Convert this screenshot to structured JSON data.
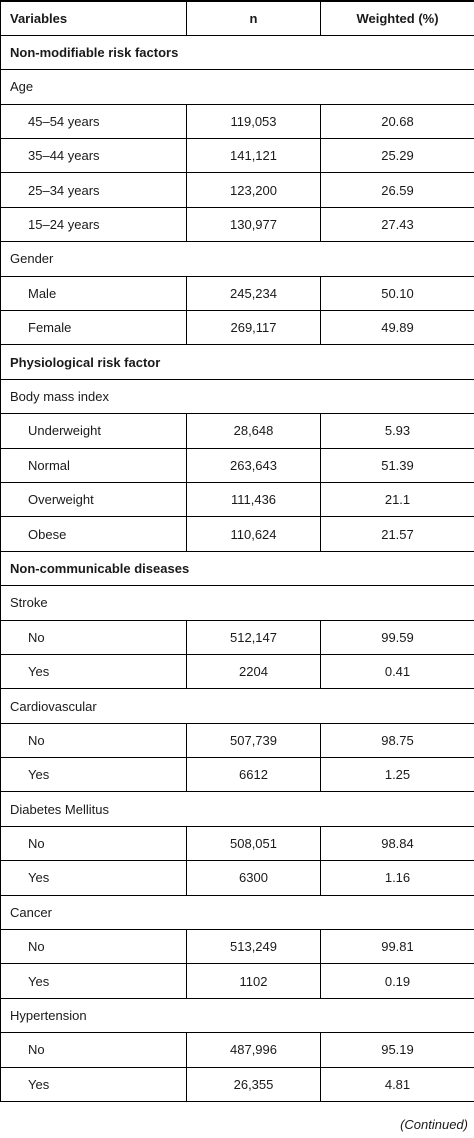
{
  "headers": {
    "variables": "Variables",
    "n": "n",
    "weighted": "Weighted (%)"
  },
  "sections": [
    {
      "title": "Non-modifiable risk factors",
      "groups": [
        {
          "name": "Age",
          "rows": [
            {
              "label": "45–54 years",
              "n": "119,053",
              "weighted": "20.68"
            },
            {
              "label": "35–44 years",
              "n": "141,121",
              "weighted": "25.29"
            },
            {
              "label": "25–34 years",
              "n": "123,200",
              "weighted": "26.59"
            },
            {
              "label": "15–24 years",
              "n": "130,977",
              "weighted": "27.43"
            }
          ]
        },
        {
          "name": "Gender",
          "rows": [
            {
              "label": "Male",
              "n": "245,234",
              "weighted": "50.10"
            },
            {
              "label": "Female",
              "n": "269,117",
              "weighted": "49.89"
            }
          ]
        }
      ]
    },
    {
      "title": "Physiological risk factor",
      "groups": [
        {
          "name": "Body mass index",
          "rows": [
            {
              "label": "Underweight",
              "n": "28,648",
              "weighted": "5.93"
            },
            {
              "label": "Normal",
              "n": "263,643",
              "weighted": "51.39"
            },
            {
              "label": "Overweight",
              "n": "111,436",
              "weighted": "21.1"
            },
            {
              "label": "Obese",
              "n": "110,624",
              "weighted": "21.57"
            }
          ]
        }
      ]
    },
    {
      "title": "Non-communicable diseases",
      "groups": [
        {
          "name": "Stroke",
          "rows": [
            {
              "label": "No",
              "n": "512,147",
              "weighted": "99.59"
            },
            {
              "label": "Yes",
              "n": "2204",
              "weighted": "0.41"
            }
          ]
        },
        {
          "name": "Cardiovascular",
          "rows": [
            {
              "label": "No",
              "n": "507,739",
              "weighted": "98.75"
            },
            {
              "label": "Yes",
              "n": "6612",
              "weighted": "1.25"
            }
          ]
        },
        {
          "name": "Diabetes Mellitus",
          "rows": [
            {
              "label": "No",
              "n": "508,051",
              "weighted": "98.84"
            },
            {
              "label": "Yes",
              "n": "6300",
              "weighted": "1.16"
            }
          ]
        },
        {
          "name": "Cancer",
          "rows": [
            {
              "label": "No",
              "n": "513,249",
              "weighted": "99.81"
            },
            {
              "label": "Yes",
              "n": "1102",
              "weighted": "0.19"
            }
          ]
        },
        {
          "name": "Hypertension",
          "rows": [
            {
              "label": "No",
              "n": "487,996",
              "weighted": "95.19"
            },
            {
              "label": "Yes",
              "n": "26,355",
              "weighted": "4.81"
            }
          ]
        }
      ]
    }
  ],
  "footer": {
    "continued": "(Continued)"
  }
}
